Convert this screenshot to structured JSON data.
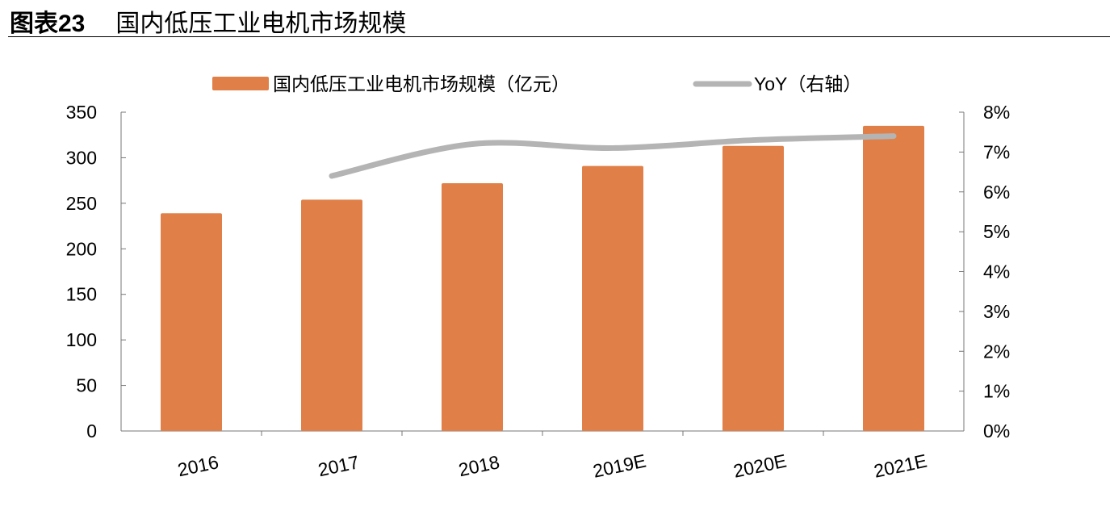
{
  "figure": {
    "label": "图表23",
    "title": "国内低压工业电机市场规模"
  },
  "chart_data": {
    "type": "bar+line",
    "categories": [
      "2016",
      "2017",
      "2018",
      "2019E",
      "2020E",
      "2021E"
    ],
    "series": [
      {
        "name": "国内低压工业电机市场规模（亿元）",
        "type": "bar",
        "axis": "left",
        "color": "#E08048",
        "values": [
          239,
          254,
          272,
          291,
          313,
          335
        ]
      },
      {
        "name": "YoY（右轴）",
        "type": "line",
        "axis": "right",
        "color": "#B4B4B4",
        "values": [
          null,
          6.4,
          7.2,
          7.1,
          7.3,
          7.4
        ]
      }
    ],
    "left_axis": {
      "ylim": [
        0,
        350
      ],
      "ticks": [
        "0",
        "50",
        "100",
        "150",
        "200",
        "250",
        "300",
        "350"
      ]
    },
    "right_axis": {
      "ylim": [
        0,
        8
      ],
      "ticks": [
        "0%",
        "1%",
        "2%",
        "3%",
        "4%",
        "5%",
        "6%",
        "7%",
        "8%"
      ]
    },
    "grid": false,
    "legend": "top"
  }
}
